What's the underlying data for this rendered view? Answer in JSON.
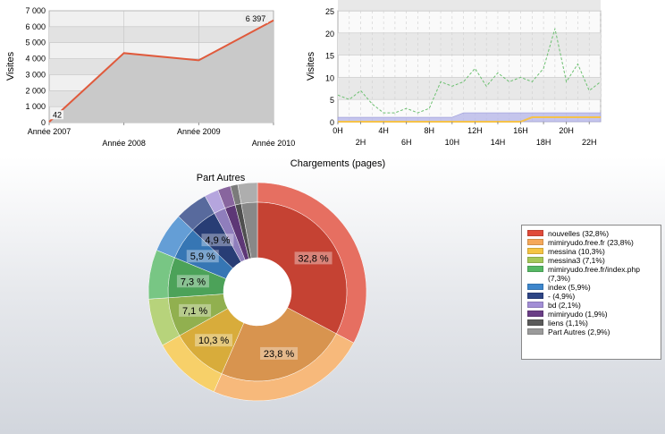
{
  "chart_data": [
    {
      "type": "line",
      "title": "",
      "xlabel": "",
      "ylabel": "Visites",
      "categories": [
        "Année 2007",
        "Année 2008",
        "Année 2009",
        "Année 2010"
      ],
      "values": [
        42,
        4350,
        3900,
        6397
      ],
      "data_labels": [
        "42",
        "",
        "",
        "6 397"
      ],
      "ylim": [
        0,
        7000
      ],
      "yticks": [
        "0",
        "1 000",
        "2 000",
        "3 000",
        "4 000",
        "5 000",
        "6 000",
        "7 000"
      ],
      "colors": {
        "line": "#e05a3c",
        "fill": "#cfcfcf",
        "plot_bg": "#e9e9e9"
      },
      "grid": true
    },
    {
      "type": "line",
      "title": "",
      "xlabel": "",
      "ylabel": "Visites",
      "x_labels_top": [
        "0H",
        "4H",
        "8H",
        "12H",
        "16H",
        "20H"
      ],
      "x_labels_bottom": [
        "2H",
        "6H",
        "10H",
        "14H",
        "18H",
        "22H"
      ],
      "ylim": [
        0,
        25
      ],
      "yticks": [
        "0",
        "5",
        "10",
        "15",
        "20",
        "25"
      ],
      "grid": true,
      "series": [
        {
          "values": [
            6,
            5,
            7,
            4,
            2,
            2,
            3,
            2,
            3,
            9,
            8,
            9,
            12,
            8,
            11,
            9,
            10,
            9,
            12,
            21,
            9,
            13,
            7,
            9
          ],
          "color": "#6cc070",
          "style": "dashed"
        },
        {
          "values": [
            1,
            1,
            1,
            1,
            1,
            1,
            1,
            1,
            1,
            1,
            1,
            2,
            2,
            2,
            2,
            2,
            2,
            2,
            2,
            2,
            2,
            2,
            2,
            2
          ],
          "color": "#b8b8e8",
          "style": "area"
        },
        {
          "values": [
            0,
            0,
            0,
            0,
            0,
            0,
            0,
            0,
            0,
            0,
            0,
            0,
            0,
            0,
            0,
            0,
            0,
            1,
            1,
            1,
            1,
            1,
            1,
            1
          ],
          "color": "#f5c24a",
          "style": "solid"
        }
      ]
    },
    {
      "type": "pie",
      "title": "Chargements (pages)",
      "inner_title": "Part Autres",
      "labels": [
        "nouvelles",
        "mimiryudo.free.fr",
        "messina",
        "messina3",
        "mimiryudo.free.fr/index.php",
        "index",
        "-",
        "bd",
        "mimiryudo",
        "liens",
        "Part Autres"
      ],
      "values": [
        32.8,
        23.8,
        10.3,
        7.1,
        7.3,
        5.9,
        4.9,
        2.1,
        1.9,
        1.1,
        2.9
      ],
      "legend": [
        "nouvelles  (32,8%)",
        "mimiryudo.free.fr  (23,8%)",
        "messina  (10,3%)",
        "messina3  (7,1%)",
        "mimiryudo.free.fr/index.php  (7,3%)",
        "index  (5,9%)",
        "-  (4,9%)",
        "bd  (2,1%)",
        "mimiryudo  (1,9%)",
        "liens  (1,1%)",
        "Part Autres  (2,9%)"
      ],
      "slice_labels": [
        "32,8 %",
        "23,8 %",
        "10,3 %",
        "7,1 %",
        "7,3 %",
        "5,9 %",
        "4,9 %",
        "",
        "",
        "",
        ""
      ],
      "colors": [
        "#e04b3a",
        "#f5a85a",
        "#f5c443",
        "#a5c85a",
        "#56b865",
        "#3d86cc",
        "#2e4585",
        "#a38fd6",
        "#6a3e86",
        "#5a5a5a",
        "#9a9a9a"
      ],
      "legend_position": "right"
    }
  ]
}
